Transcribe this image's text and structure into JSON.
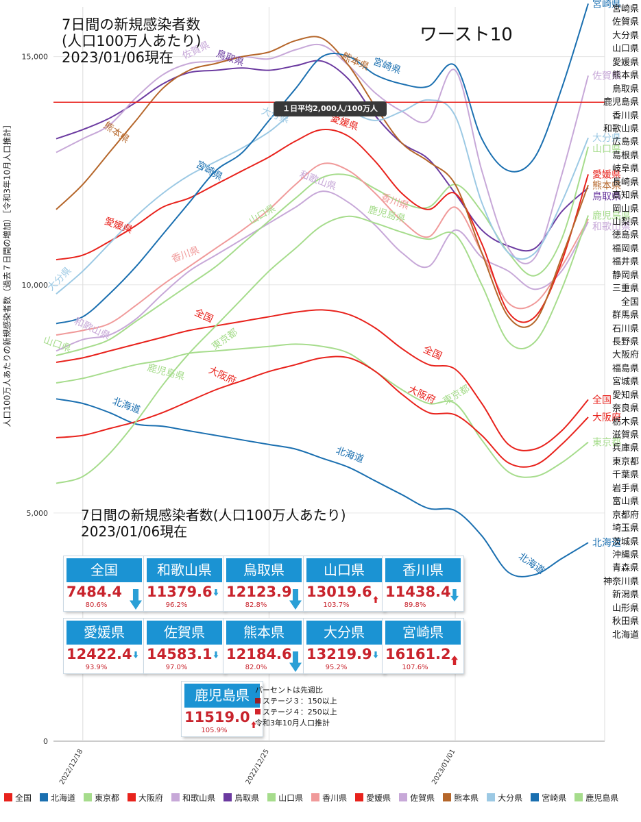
{
  "title": {
    "line1": "7日間の新規感染者数",
    "line2": "(人口100万人あたり)",
    "line3": "2023/01/06現在"
  },
  "worst_label": "ワースト10",
  "y_axis_label": "人口100万人あたりの新規感染者数（過去７日間の増加）［令和3年10月人口推計］",
  "subtitle": {
    "line1": "7日間の新規感染者数(人口100万人あたり)",
    "line2": "2023/01/06現在"
  },
  "reference_line": {
    "label": "１日平均2,000人/100万人",
    "value": 14000,
    "color": "#e8221c"
  },
  "prefecture_list": [
    "宮崎県",
    "佐賀県",
    "大分県",
    "山口県",
    "愛媛県",
    "熊本県",
    "鳥取県",
    "鹿児島県",
    "香川県",
    "和歌山県",
    "広島県",
    "島根県",
    "岐阜県",
    "長崎県",
    "高知県",
    "岡山県",
    "山梨県",
    "徳島県",
    "福岡県",
    "福井県",
    "静岡県",
    "三重県",
    "全国",
    "群馬県",
    "石川県",
    "長野県",
    "大阪府",
    "福島県",
    "宮城県",
    "愛知県",
    "奈良県",
    "栃木県",
    "滋賀県",
    "兵庫県",
    "東京都",
    "千葉県",
    "岩手県",
    "富山県",
    "京都府",
    "埼玉県",
    "茨城県",
    "沖縄県",
    "青森県",
    "神奈川県",
    "新潟県",
    "山形県",
    "秋田県",
    "北海道"
  ],
  "cards": [
    {
      "name": "全国",
      "value": "7484.4",
      "pct": "80.6%",
      "dir": "down-big"
    },
    {
      "name": "和歌山県",
      "value": "11379.6",
      "pct": "96.2%",
      "dir": "down-small"
    },
    {
      "name": "鳥取県",
      "value": "12123.9",
      "pct": "82.8%",
      "dir": "down-big"
    },
    {
      "name": "山口県",
      "value": "13019.6",
      "pct": "103.7%",
      "dir": "up-small"
    },
    {
      "name": "香川県",
      "value": "11438.4",
      "pct": "89.8%",
      "dir": "down-mid"
    },
    {
      "name": "愛媛県",
      "value": "12422.4",
      "pct": "93.9%",
      "dir": "down-small"
    },
    {
      "name": "佐賀県",
      "value": "14583.1",
      "pct": "97.0%",
      "dir": "down-small"
    },
    {
      "name": "熊本県",
      "value": "12184.6",
      "pct": "82.0%",
      "dir": "down-big"
    },
    {
      "name": "大分県",
      "value": "13219.9",
      "pct": "95.2%",
      "dir": "down-small"
    },
    {
      "name": "宮崎県",
      "value": "16161.2",
      "pct": "107.6%",
      "dir": "up-mid"
    },
    {
      "name": "鹿児島県",
      "value": "11519.0",
      "pct": "105.9%",
      "dir": "up-small"
    }
  ],
  "notes": {
    "line1": "パーセントは先週比",
    "line2": "ステージ３：150以上",
    "line3": "ステージ４：250以上",
    "line4": "令和3年10月人口推計"
  },
  "chart_data": {
    "type": "line",
    "title": "7日間の新規感染者数",
    "ylabel": "人口100万人あたりの新規感染者数（過去７日間の増加）［令和3年10月人口推計］",
    "ylim": [
      0,
      16000
    ],
    "yticks": [
      0,
      5000,
      10000,
      15000
    ],
    "ytick_labels": [
      "0",
      "5,000",
      "10,000",
      "15,000"
    ],
    "x_tick_labels": [
      "2022/12/18",
      "2022/12/25",
      "2023/01/01"
    ],
    "x": [
      "12/17",
      "12/18",
      "12/19",
      "12/20",
      "12/21",
      "12/22",
      "12/23",
      "12/24",
      "12/25",
      "12/26",
      "12/27",
      "12/28",
      "12/29",
      "12/30",
      "12/31",
      "01/01",
      "01/02",
      "01/03",
      "01/04",
      "01/05",
      "01/06"
    ],
    "grid": true,
    "series": [
      {
        "name": "全国",
        "color": "#e8221c",
        "values": [
          8300,
          8400,
          8550,
          8700,
          8850,
          9000,
          9100,
          9200,
          9300,
          9400,
          9450,
          9350,
          9050,
          8600,
          8250,
          8150,
          7400,
          6500,
          6400,
          6800,
          7484
        ]
      },
      {
        "name": "北海道",
        "color": "#1a6fb0",
        "values": [
          7500,
          7400,
          7200,
          6950,
          6900,
          6800,
          6700,
          6600,
          6500,
          6400,
          6200,
          6000,
          5700,
          5400,
          5100,
          5050,
          4500,
          3700,
          3650,
          4000,
          4350
        ]
      },
      {
        "name": "東京都",
        "color": "#a6dc8c",
        "values": [
          7850,
          7950,
          8100,
          8250,
          8350,
          8500,
          8550,
          8600,
          8650,
          8700,
          8650,
          8500,
          8100,
          7700,
          7400,
          7400,
          6600,
          5900,
          5800,
          6100,
          6550
        ]
      },
      {
        "name": "大阪府",
        "color": "#e8221c",
        "values": [
          6650,
          6700,
          6850,
          7000,
          7200,
          7450,
          7700,
          7900,
          8100,
          8250,
          8400,
          8400,
          8100,
          7600,
          7200,
          7150,
          6700,
          6100,
          6050,
          6500,
          7100
        ]
      },
      {
        "name": "和歌山県",
        "color": "#c7a8d8",
        "values": [
          8550,
          8800,
          8900,
          9250,
          9800,
          10300,
          10650,
          11000,
          11350,
          11700,
          12050,
          11800,
          11300,
          10700,
          10400,
          11200,
          10600,
          10300,
          9900,
          10300,
          11380
        ]
      },
      {
        "name": "鳥取県",
        "color": "#6b3aa0",
        "values": [
          13200,
          13400,
          13650,
          14000,
          14400,
          14650,
          14700,
          14750,
          14700,
          14800,
          14900,
          14500,
          13700,
          13100,
          12750,
          12000,
          11200,
          10850,
          10800,
          11600,
          12124
        ]
      },
      {
        "name": "山口県",
        "color": "#a6dc8c",
        "values": [
          8450,
          8600,
          8800,
          9200,
          9600,
          10000,
          10400,
          10900,
          11400,
          11900,
          12350,
          12400,
          12100,
          11800,
          11700,
          12200,
          11600,
          10700,
          10200,
          11000,
          13020
        ]
      },
      {
        "name": "香川県",
        "color": "#f09a9a",
        "values": [
          8900,
          9000,
          9150,
          9550,
          10000,
          10400,
          10800,
          11200,
          11650,
          12200,
          12650,
          12500,
          12000,
          11400,
          11050,
          11700,
          10700,
          9600,
          9600,
          10400,
          11438
        ]
      },
      {
        "name": "愛媛県",
        "color": "#e8221c",
        "values": [
          10550,
          10650,
          10950,
          11300,
          11700,
          11900,
          12200,
          12500,
          12800,
          13150,
          13400,
          13250,
          12700,
          12000,
          11650,
          12000,
          10900,
          9400,
          9300,
          10500,
          12422
        ]
      },
      {
        "name": "佐賀県",
        "color": "#c7a8d8",
        "values": [
          12900,
          13200,
          13500,
          14100,
          14600,
          14850,
          14900,
          15000,
          14950,
          15150,
          15250,
          14800,
          14200,
          13800,
          13600,
          14700,
          12500,
          10800,
          10600,
          12400,
          14583
        ]
      },
      {
        "name": "熊本県",
        "color": "#b5662a",
        "values": [
          11650,
          12200,
          12900,
          13600,
          14300,
          14700,
          14850,
          15000,
          15100,
          15350,
          15400,
          14800,
          13900,
          13100,
          12700,
          12200,
          10700,
          9300,
          9200,
          10600,
          12185
        ]
      },
      {
        "name": "大分県",
        "color": "#9cc9e4",
        "values": [
          9800,
          10300,
          10900,
          11500,
          12000,
          12400,
          12700,
          13000,
          13350,
          13800,
          13950,
          13800,
          13600,
          13800,
          14050,
          13700,
          11800,
          10700,
          10700,
          11800,
          13220
        ]
      },
      {
        "name": "宮崎県",
        "color": "#1a6fb0",
        "values": [
          9150,
          9300,
          9800,
          10400,
          11100,
          11800,
          12500,
          12900,
          13600,
          14300,
          15000,
          15000,
          14600,
          14400,
          14350,
          14800,
          13200,
          12500,
          12800,
          14300,
          16161
        ]
      },
      {
        "name": "鹿児島県",
        "color": "#a6dc8c",
        "values": [
          5650,
          5800,
          6300,
          7000,
          7800,
          8500,
          9100,
          9700,
          10300,
          10800,
          11300,
          11500,
          11350,
          11150,
          11000,
          11100,
          10000,
          8750,
          8750,
          9900,
          11519
        ]
      }
    ],
    "end_labels": [
      {
        "text": "宮崎県",
        "series": "宮崎県"
      },
      {
        "text": "佐賀県",
        "series": "佐賀県"
      },
      {
        "text": "大分県",
        "series": "大分県"
      },
      {
        "text": "山口県",
        "series": "山口県"
      },
      {
        "text": "愛媛県",
        "series": "愛媛県"
      },
      {
        "text": "熊本県",
        "series": "熊本県"
      },
      {
        "text": "鳥取県",
        "series": "鳥取県"
      },
      {
        "text": "鹿児島県",
        "series": "鹿児島県"
      },
      {
        "text": "和歌山県",
        "series": "和歌山県"
      },
      {
        "text": "全国",
        "series": "全国"
      },
      {
        "text": "大阪府",
        "series": "大阪府"
      },
      {
        "text": "東京都",
        "series": "東京都"
      },
      {
        "text": "北海道",
        "series": "北海道"
      }
    ],
    "inline_labels": [
      {
        "text": "熊本県",
        "series": "熊本県",
        "xi": 2.2,
        "dy": -16,
        "rot": 35
      },
      {
        "text": "熊本県",
        "series": "熊本県",
        "xi": 11.2,
        "dy": -14,
        "rot": 25
      },
      {
        "text": "鳥取県",
        "series": "鳥取県",
        "xi": 6.5,
        "dy": -12,
        "rot": 20
      },
      {
        "text": "佐賀県",
        "series": "佐賀県",
        "xi": 5.3,
        "dy": -14,
        "rot": -25
      },
      {
        "text": "宮崎県",
        "series": "宮崎県",
        "xi": 12.4,
        "dy": -14,
        "rot": 20
      },
      {
        "text": "宮崎県",
        "series": "宮崎県",
        "xi": 5.7,
        "dy": -10,
        "rot": 30
      },
      {
        "text": "大分県",
        "series": "大分県",
        "xi": 8.2,
        "dy": -14,
        "rot": 20
      },
      {
        "text": "大分県",
        "series": "大分県",
        "xi": 0.2,
        "dy": -12,
        "rot": -45
      },
      {
        "text": "愛媛県",
        "series": "愛媛県",
        "xi": 2.3,
        "dy": -12,
        "rot": 20
      },
      {
        "text": "愛媛県",
        "series": "愛媛県",
        "xi": 10.8,
        "dy": -14,
        "rot": 20
      },
      {
        "text": "香川県",
        "series": "香川県",
        "xi": 12.7,
        "dy": -12,
        "rot": 20
      },
      {
        "text": "香川県",
        "series": "香川県",
        "xi": 4.9,
        "dy": -16,
        "rot": -20
      },
      {
        "text": "和歌山県",
        "series": "和歌山県",
        "xi": 9.8,
        "dy": -16,
        "rot": 20
      },
      {
        "text": "和歌山県",
        "series": "和歌山県",
        "xi": 1.3,
        "dy": -10,
        "rot": 25
      },
      {
        "text": "山口県",
        "series": "山口県",
        "xi": 7.8,
        "dy": -12,
        "rot": -30
      },
      {
        "text": "山口県",
        "series": "山口県",
        "xi": 0.0,
        "dy": -12,
        "rot": 20
      },
      {
        "text": "鹿児島県",
        "series": "鹿児島県",
        "xi": 12.4,
        "dy": -14,
        "rot": 15
      },
      {
        "text": "鹿児島県",
        "series": "鹿児島県",
        "xi": 4.1,
        "dy": -10,
        "rot": 15
      },
      {
        "text": "全国",
        "series": "全国",
        "xi": 5.5,
        "dy": -14,
        "rot": 25
      },
      {
        "text": "全国",
        "series": "全国",
        "xi": 14.1,
        "dy": -14,
        "rot": 25
      },
      {
        "text": "東京都",
        "series": "東京都",
        "xi": 6.4,
        "dy": -12,
        "rot": -35
      },
      {
        "text": "東京都",
        "series": "東京都",
        "xi": 15.1,
        "dy": -14,
        "rot": -30
      },
      {
        "text": "大阪府",
        "series": "大阪府",
        "xi": 6.2,
        "dy": -14,
        "rot": 25
      },
      {
        "text": "大阪府",
        "series": "大阪府",
        "xi": 13.7,
        "dy": -14,
        "rot": 25
      },
      {
        "text": "北海道",
        "series": "北海道",
        "xi": 2.6,
        "dy": -16,
        "rot": 20
      },
      {
        "text": "北海道",
        "series": "北海道",
        "xi": 11.0,
        "dy": -14,
        "rot": 20
      },
      {
        "text": "北海道",
        "series": "北海道",
        "xi": 17.8,
        "dy": -12,
        "rot": 35
      }
    ]
  },
  "legend": [
    {
      "name": "全国",
      "color": "#e8221c"
    },
    {
      "name": "北海道",
      "color": "#1a6fb0"
    },
    {
      "name": "東京都",
      "color": "#a6dc8c"
    },
    {
      "name": "大阪府",
      "color": "#e8221c"
    },
    {
      "name": "和歌山県",
      "color": "#c7a8d8"
    },
    {
      "name": "鳥取県",
      "color": "#6b3aa0"
    },
    {
      "name": "山口県",
      "color": "#a6dc8c"
    },
    {
      "name": "香川県",
      "color": "#f09a9a"
    },
    {
      "name": "愛媛県",
      "color": "#e8221c"
    },
    {
      "name": "佐賀県",
      "color": "#c7a8d8"
    },
    {
      "name": "熊本県",
      "color": "#b5662a"
    },
    {
      "name": "大分県",
      "color": "#9cc9e4"
    },
    {
      "name": "宮崎県",
      "color": "#1a6fb0"
    },
    {
      "name": "鹿児島県",
      "color": "#a6dc8c"
    }
  ]
}
